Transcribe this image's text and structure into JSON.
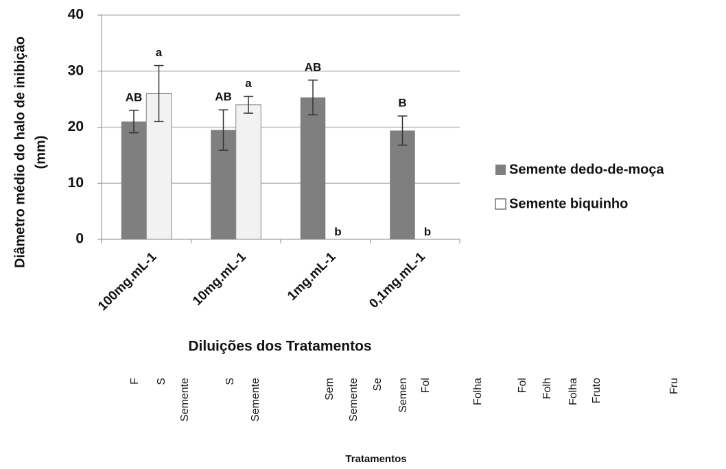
{
  "chart_data": {
    "type": "bar",
    "y_label": [
      "Diâmetro médio do halo de inibição",
      "(mm)"
    ],
    "x_label": "Diluições dos Tratamentos",
    "categories": [
      "100mg.mL-1",
      "10mg.mL-1",
      "1mg.mL-1",
      "0,1mg.mL-1"
    ],
    "series": [
      {
        "name": "Semente dedo-de-moça",
        "color": "#7f7f7f",
        "values": [
          21,
          19.5,
          25.3,
          19.4
        ],
        "errors": [
          2,
          3.6,
          3.1,
          2.6
        ],
        "letters": [
          "AB",
          "AB",
          "AB",
          "B"
        ]
      },
      {
        "name": "Semente biquinho",
        "color": "#f2f2f2",
        "values": [
          26,
          24,
          0,
          0
        ],
        "errors": [
          5,
          1.5,
          0,
          0
        ],
        "letters": [
          "a",
          "a",
          "b",
          "b"
        ]
      }
    ],
    "ylim": [
      0,
      40
    ],
    "yticks": [
      0,
      10,
      20,
      30,
      40
    ],
    "grid": true,
    "legend": "right",
    "background_texts": [
      "F",
      "S",
      "Semente",
      "S",
      "Semente",
      "Sem",
      "Semente",
      "Se",
      "Semen",
      "Fol",
      "Folha",
      "Fol",
      "Folh",
      "Folha",
      "Fruto",
      "Fru"
    ],
    "background_title": "Tratamentos"
  }
}
